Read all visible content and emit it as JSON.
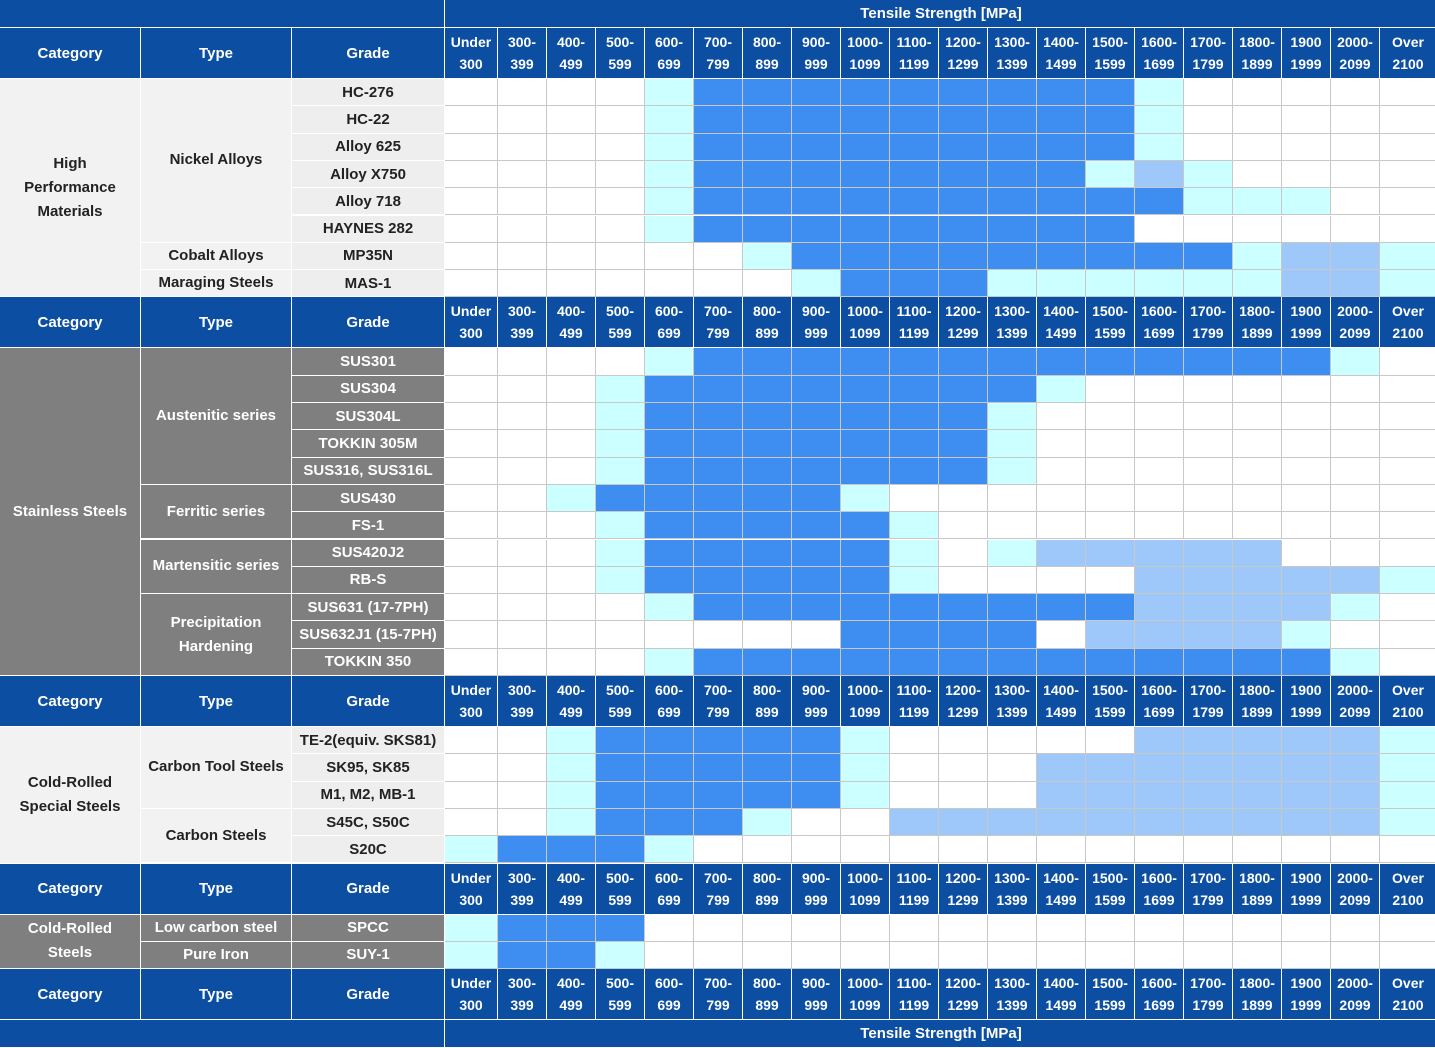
{
  "title": "Tensile Strength [MPa]",
  "headers": {
    "category": "Category",
    "type": "Type",
    "grade": "Grade"
  },
  "ranges": [
    [
      "Under",
      "300"
    ],
    [
      "300-",
      "399"
    ],
    [
      "400-",
      "499"
    ],
    [
      "500-",
      "599"
    ],
    [
      "600-",
      "699"
    ],
    [
      "700-",
      "799"
    ],
    [
      "800-",
      "899"
    ],
    [
      "900-",
      "999"
    ],
    [
      "1000-",
      "1099"
    ],
    [
      "1100-",
      "1199"
    ],
    [
      "1200-",
      "1299"
    ],
    [
      "1300-",
      "1399"
    ],
    [
      "1400-",
      "1499"
    ],
    [
      "1500-",
      "1599"
    ],
    [
      "1600-",
      "1699"
    ],
    [
      "1700-",
      "1799"
    ],
    [
      "1800-",
      "1899"
    ],
    [
      "1900",
      "1999"
    ],
    [
      "2000-",
      "2099"
    ],
    [
      "Over",
      "2100"
    ]
  ],
  "legend_colors": {
    "0": "#ffffff",
    "1": "#ccffff",
    "2": "#3d8ef0",
    "3": "#9ec8fa"
  },
  "groups": [
    {
      "category": "High\nPerformance\nMaterials",
      "shade": "light",
      "types": [
        {
          "name": "Nickel Alloys",
          "grades": [
            {
              "name": "HC-276",
              "levels": [
                0,
                0,
                0,
                0,
                1,
                2,
                2,
                2,
                2,
                2,
                2,
                2,
                2,
                2,
                1,
                0,
                0,
                0,
                0,
                0
              ]
            },
            {
              "name": "HC-22",
              "levels": [
                0,
                0,
                0,
                0,
                1,
                2,
                2,
                2,
                2,
                2,
                2,
                2,
                2,
                2,
                1,
                0,
                0,
                0,
                0,
                0
              ]
            },
            {
              "name": "Alloy 625",
              "levels": [
                0,
                0,
                0,
                0,
                1,
                2,
                2,
                2,
                2,
                2,
                2,
                2,
                2,
                2,
                1,
                0,
                0,
                0,
                0,
                0
              ]
            },
            {
              "name": "Alloy X750",
              "levels": [
                0,
                0,
                0,
                0,
                1,
                2,
                2,
                2,
                2,
                2,
                2,
                2,
                2,
                1,
                3,
                1,
                0,
                0,
                0,
                0
              ]
            },
            {
              "name": "Alloy 718",
              "levels": [
                0,
                0,
                0,
                0,
                1,
                2,
                2,
                2,
                2,
                2,
                2,
                2,
                2,
                2,
                2,
                1,
                1,
                1,
                0,
                0
              ]
            },
            {
              "name": "HAYNES 282",
              "levels": [
                0,
                0,
                0,
                0,
                1,
                2,
                2,
                2,
                2,
                2,
                2,
                2,
                2,
                2,
                0,
                0,
                0,
                0,
                0,
                0
              ]
            }
          ]
        },
        {
          "name": "Cobalt Alloys",
          "grades": [
            {
              "name": "MP35N",
              "levels": [
                0,
                0,
                0,
                0,
                0,
                0,
                1,
                2,
                2,
                2,
                2,
                2,
                2,
                2,
                2,
                2,
                1,
                3,
                3,
                1
              ]
            }
          ]
        },
        {
          "name": "Maraging Steels",
          "grades": [
            {
              "name": "MAS-1",
              "levels": [
                0,
                0,
                0,
                0,
                0,
                0,
                0,
                1,
                2,
                2,
                2,
                1,
                1,
                1,
                1,
                1,
                1,
                3,
                3,
                1
              ]
            }
          ]
        }
      ]
    },
    {
      "category": "Stainless Steels",
      "shade": "dark",
      "types": [
        {
          "name": "Austenitic series",
          "grades": [
            {
              "name": "SUS301",
              "levels": [
                0,
                0,
                0,
                0,
                1,
                2,
                2,
                2,
                2,
                2,
                2,
                2,
                2,
                2,
                2,
                2,
                2,
                2,
                1,
                0
              ]
            },
            {
              "name": "SUS304",
              "levels": [
                0,
                0,
                0,
                1,
                2,
                2,
                2,
                2,
                2,
                2,
                2,
                2,
                1,
                0,
                0,
                0,
                0,
                0,
                0,
                0
              ]
            },
            {
              "name": "SUS304L",
              "levels": [
                0,
                0,
                0,
                1,
                2,
                2,
                2,
                2,
                2,
                2,
                2,
                1,
                0,
                0,
                0,
                0,
                0,
                0,
                0,
                0
              ]
            },
            {
              "name": "TOKKIN 305M",
              "levels": [
                0,
                0,
                0,
                1,
                2,
                2,
                2,
                2,
                2,
                2,
                2,
                1,
                0,
                0,
                0,
                0,
                0,
                0,
                0,
                0
              ]
            },
            {
              "name": "SUS316, SUS316L",
              "levels": [
                0,
                0,
                0,
                1,
                2,
                2,
                2,
                2,
                2,
                2,
                2,
                1,
                0,
                0,
                0,
                0,
                0,
                0,
                0,
                0
              ]
            }
          ]
        },
        {
          "name": "Ferritic series",
          "grades": [
            {
              "name": "SUS430",
              "levels": [
                0,
                0,
                1,
                2,
                2,
                2,
                2,
                2,
                1,
                0,
                0,
                0,
                0,
                0,
                0,
                0,
                0,
                0,
                0,
                0
              ]
            },
            {
              "name": "FS-1",
              "levels": [
                0,
                0,
                0,
                1,
                2,
                2,
                2,
                2,
                2,
                1,
                0,
                0,
                0,
                0,
                0,
                0,
                0,
                0,
                0,
                0
              ]
            }
          ]
        },
        {
          "name": "Martensitic series",
          "grades": [
            {
              "name": "SUS420J2",
              "levels": [
                0,
                0,
                0,
                1,
                2,
                2,
                2,
                2,
                2,
                1,
                0,
                1,
                3,
                3,
                3,
                3,
                3,
                0,
                0,
                0
              ]
            },
            {
              "name": "RB-S",
              "levels": [
                0,
                0,
                0,
                1,
                2,
                2,
                2,
                2,
                2,
                1,
                0,
                0,
                0,
                0,
                3,
                3,
                3,
                3,
                3,
                1
              ]
            }
          ]
        },
        {
          "name": "Precipitation\nHardening",
          "grades": [
            {
              "name": "SUS631 (17-7PH)",
              "levels": [
                0,
                0,
                0,
                0,
                1,
                2,
                2,
                2,
                2,
                2,
                2,
                2,
                2,
                2,
                3,
                3,
                3,
                3,
                1,
                0
              ]
            },
            {
              "name": "SUS632J1 (15-7PH)",
              "levels": [
                0,
                0,
                0,
                0,
                0,
                0,
                0,
                0,
                2,
                2,
                2,
                2,
                0,
                3,
                3,
                3,
                3,
                1,
                0,
                0
              ]
            },
            {
              "name": "TOKKIN 350",
              "levels": [
                0,
                0,
                0,
                0,
                1,
                2,
                2,
                2,
                2,
                2,
                2,
                2,
                2,
                2,
                2,
                2,
                2,
                2,
                1,
                0
              ]
            }
          ]
        }
      ]
    },
    {
      "category": "Cold-Rolled\nSpecial Steels",
      "shade": "light",
      "types": [
        {
          "name": "Carbon Tool Steels",
          "grades": [
            {
              "name": "TE-2(equiv. SKS81)",
              "levels": [
                0,
                0,
                1,
                2,
                2,
                2,
                2,
                2,
                1,
                0,
                0,
                0,
                0,
                0,
                3,
                3,
                3,
                3,
                3,
                1
              ]
            },
            {
              "name": "SK95, SK85",
              "levels": [
                0,
                0,
                1,
                2,
                2,
                2,
                2,
                2,
                1,
                0,
                0,
                0,
                3,
                3,
                3,
                3,
                3,
                3,
                3,
                1
              ]
            },
            {
              "name": "M1, M2, MB-1",
              "levels": [
                0,
                0,
                1,
                2,
                2,
                2,
                2,
                2,
                1,
                0,
                0,
                0,
                3,
                3,
                3,
                3,
                3,
                3,
                3,
                1
              ]
            }
          ]
        },
        {
          "name": "Carbon Steels",
          "grades": [
            {
              "name": "S45C, S50C",
              "levels": [
                0,
                0,
                1,
                2,
                2,
                2,
                1,
                0,
                0,
                3,
                3,
                3,
                3,
                3,
                3,
                3,
                3,
                3,
                3,
                1
              ]
            },
            {
              "name": "S20C",
              "levels": [
                1,
                2,
                2,
                2,
                1,
                0,
                0,
                0,
                0,
                0,
                0,
                0,
                0,
                0,
                0,
                0,
                0,
                0,
                0,
                0
              ]
            }
          ]
        }
      ]
    },
    {
      "category": "Cold-Rolled\nSteels",
      "shade": "dark",
      "types": [
        {
          "name": "Low carbon steel",
          "grades": [
            {
              "name": "SPCC",
              "levels": [
                1,
                2,
                2,
                2,
                0,
                0,
                0,
                0,
                0,
                0,
                0,
                0,
                0,
                0,
                0,
                0,
                0,
                0,
                0,
                0
              ]
            }
          ]
        },
        {
          "name": "Pure Iron",
          "grades": [
            {
              "name": "SUY-1",
              "levels": [
                1,
                2,
                2,
                1,
                0,
                0,
                0,
                0,
                0,
                0,
                0,
                0,
                0,
                0,
                0,
                0,
                0,
                0,
                0,
                0
              ]
            }
          ]
        }
      ]
    }
  ]
}
